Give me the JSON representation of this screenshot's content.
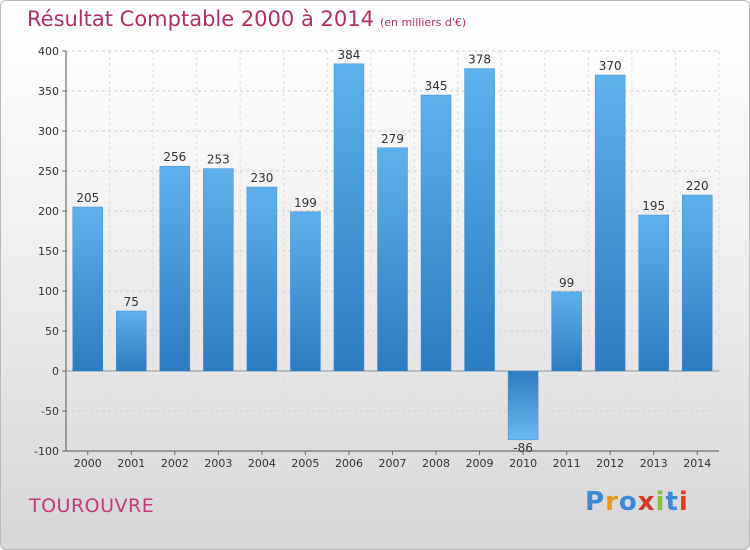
{
  "title": "Résultat Comptable 2000 à 2014",
  "subtitle": "(en milliers d'€)",
  "commune": "TOUROUVRE",
  "logo": {
    "text": "Proxiti",
    "colors": [
      "#3a8ad8",
      "#e89a1e",
      "#3a8ad8",
      "#d23a2a",
      "#8ac23a",
      "#3a8ad8",
      "#e8381e"
    ]
  },
  "chart_data": {
    "type": "bar",
    "categories": [
      "2000",
      "2001",
      "2002",
      "2003",
      "2004",
      "2005",
      "2006",
      "2007",
      "2008",
      "2009",
      "2010",
      "2011",
      "2012",
      "2013",
      "2014"
    ],
    "values": [
      205,
      75,
      256,
      253,
      230,
      199,
      384,
      279,
      345,
      378,
      -86,
      99,
      370,
      195,
      220
    ],
    "ylim": [
      -100,
      400
    ],
    "yticks": [
      -100,
      -50,
      0,
      50,
      100,
      150,
      200,
      250,
      300,
      350,
      400
    ],
    "grid": true,
    "bar_color": "#4a9fe0"
  }
}
